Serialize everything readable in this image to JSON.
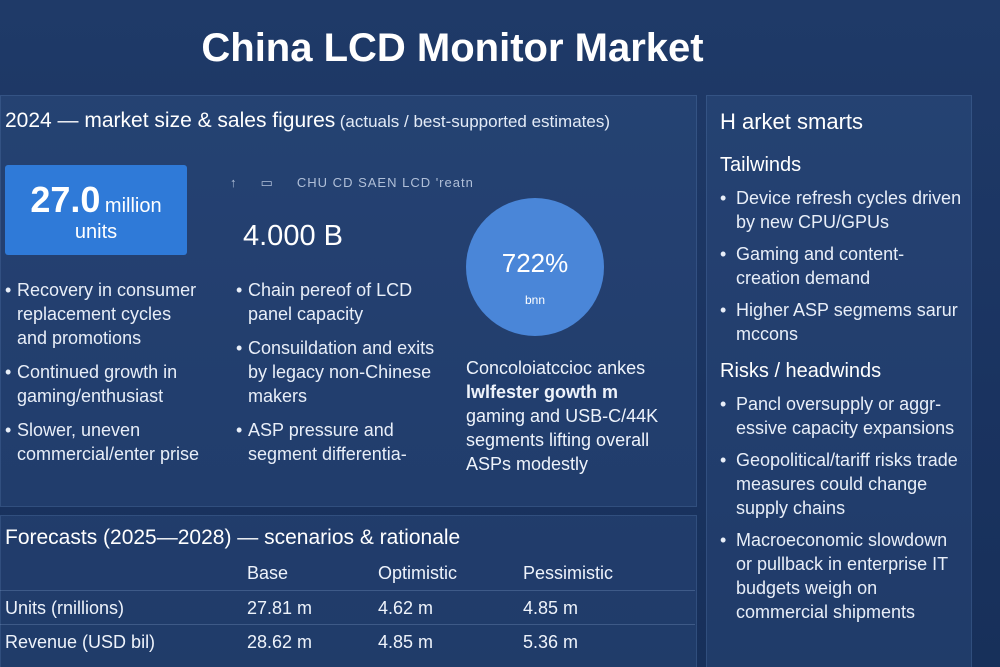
{
  "header": {
    "title": "China LCD Monitor Market"
  },
  "market_2024": {
    "heading": "2024 — market size & sales figures",
    "heading_note": "(actuals / best-supported estimates)",
    "units_card": {
      "value": "27.0",
      "unit": "million",
      "label": "units"
    },
    "column_1": {
      "bullets": [
        "Recovery in consumer replacement cycles and promotions",
        "Continued growth in gaming/enthusiast",
        "Slower, uneven commercial/enter prise"
      ]
    },
    "column_2": {
      "caption": "CHU CD SAEN LCD 'reatn",
      "value": "4.000 B",
      "bullets": [
        "Chain pereof of LCD panel capacity",
        "Consuildation and exits by legacy non-Chinese makers",
        "ASP pressure and segment differentia-"
      ]
    },
    "column_3": {
      "circle_value": "722%",
      "circle_label": "bnn",
      "text_lead": "Concoloiatccioc ankes",
      "text_bold": "lwlfester gowth m",
      "text_rest": "gaming and USB-C/44K segments lifting overall ASPs modestly"
    }
  },
  "sidebar": {
    "heading": "H arket smarts",
    "tailwinds": {
      "heading": "Tailwinds",
      "bullets": [
        "Device refresh cycles driven by new CPU/GPUs",
        "Gaming and content-creation demand",
        "Higher ASP segmems sarur mccons"
      ]
    },
    "risks": {
      "heading": "Risks / headwinds",
      "bullets": [
        "Pancl oversupply or aggr-essive capacity expansions",
        "Geopolitical/tariff risks trade measures could change supply chains",
        "Macroeconomic slowdown or pullback in enterprise IT budgets weigh on commercial shipments"
      ]
    }
  },
  "forecast": {
    "heading": "Forecasts (2025—2028) — scenarios & rationale",
    "columns": [
      "Base",
      "Optimistic",
      "Pessimistic"
    ],
    "rows": [
      [
        "Units (rnillions)",
        "27.81 m",
        "4.62 m",
        "4.85 m"
      ],
      [
        "Revenue (USD bil)",
        "28.62 m",
        "4.85 m",
        "5.36 m"
      ]
    ]
  }
}
